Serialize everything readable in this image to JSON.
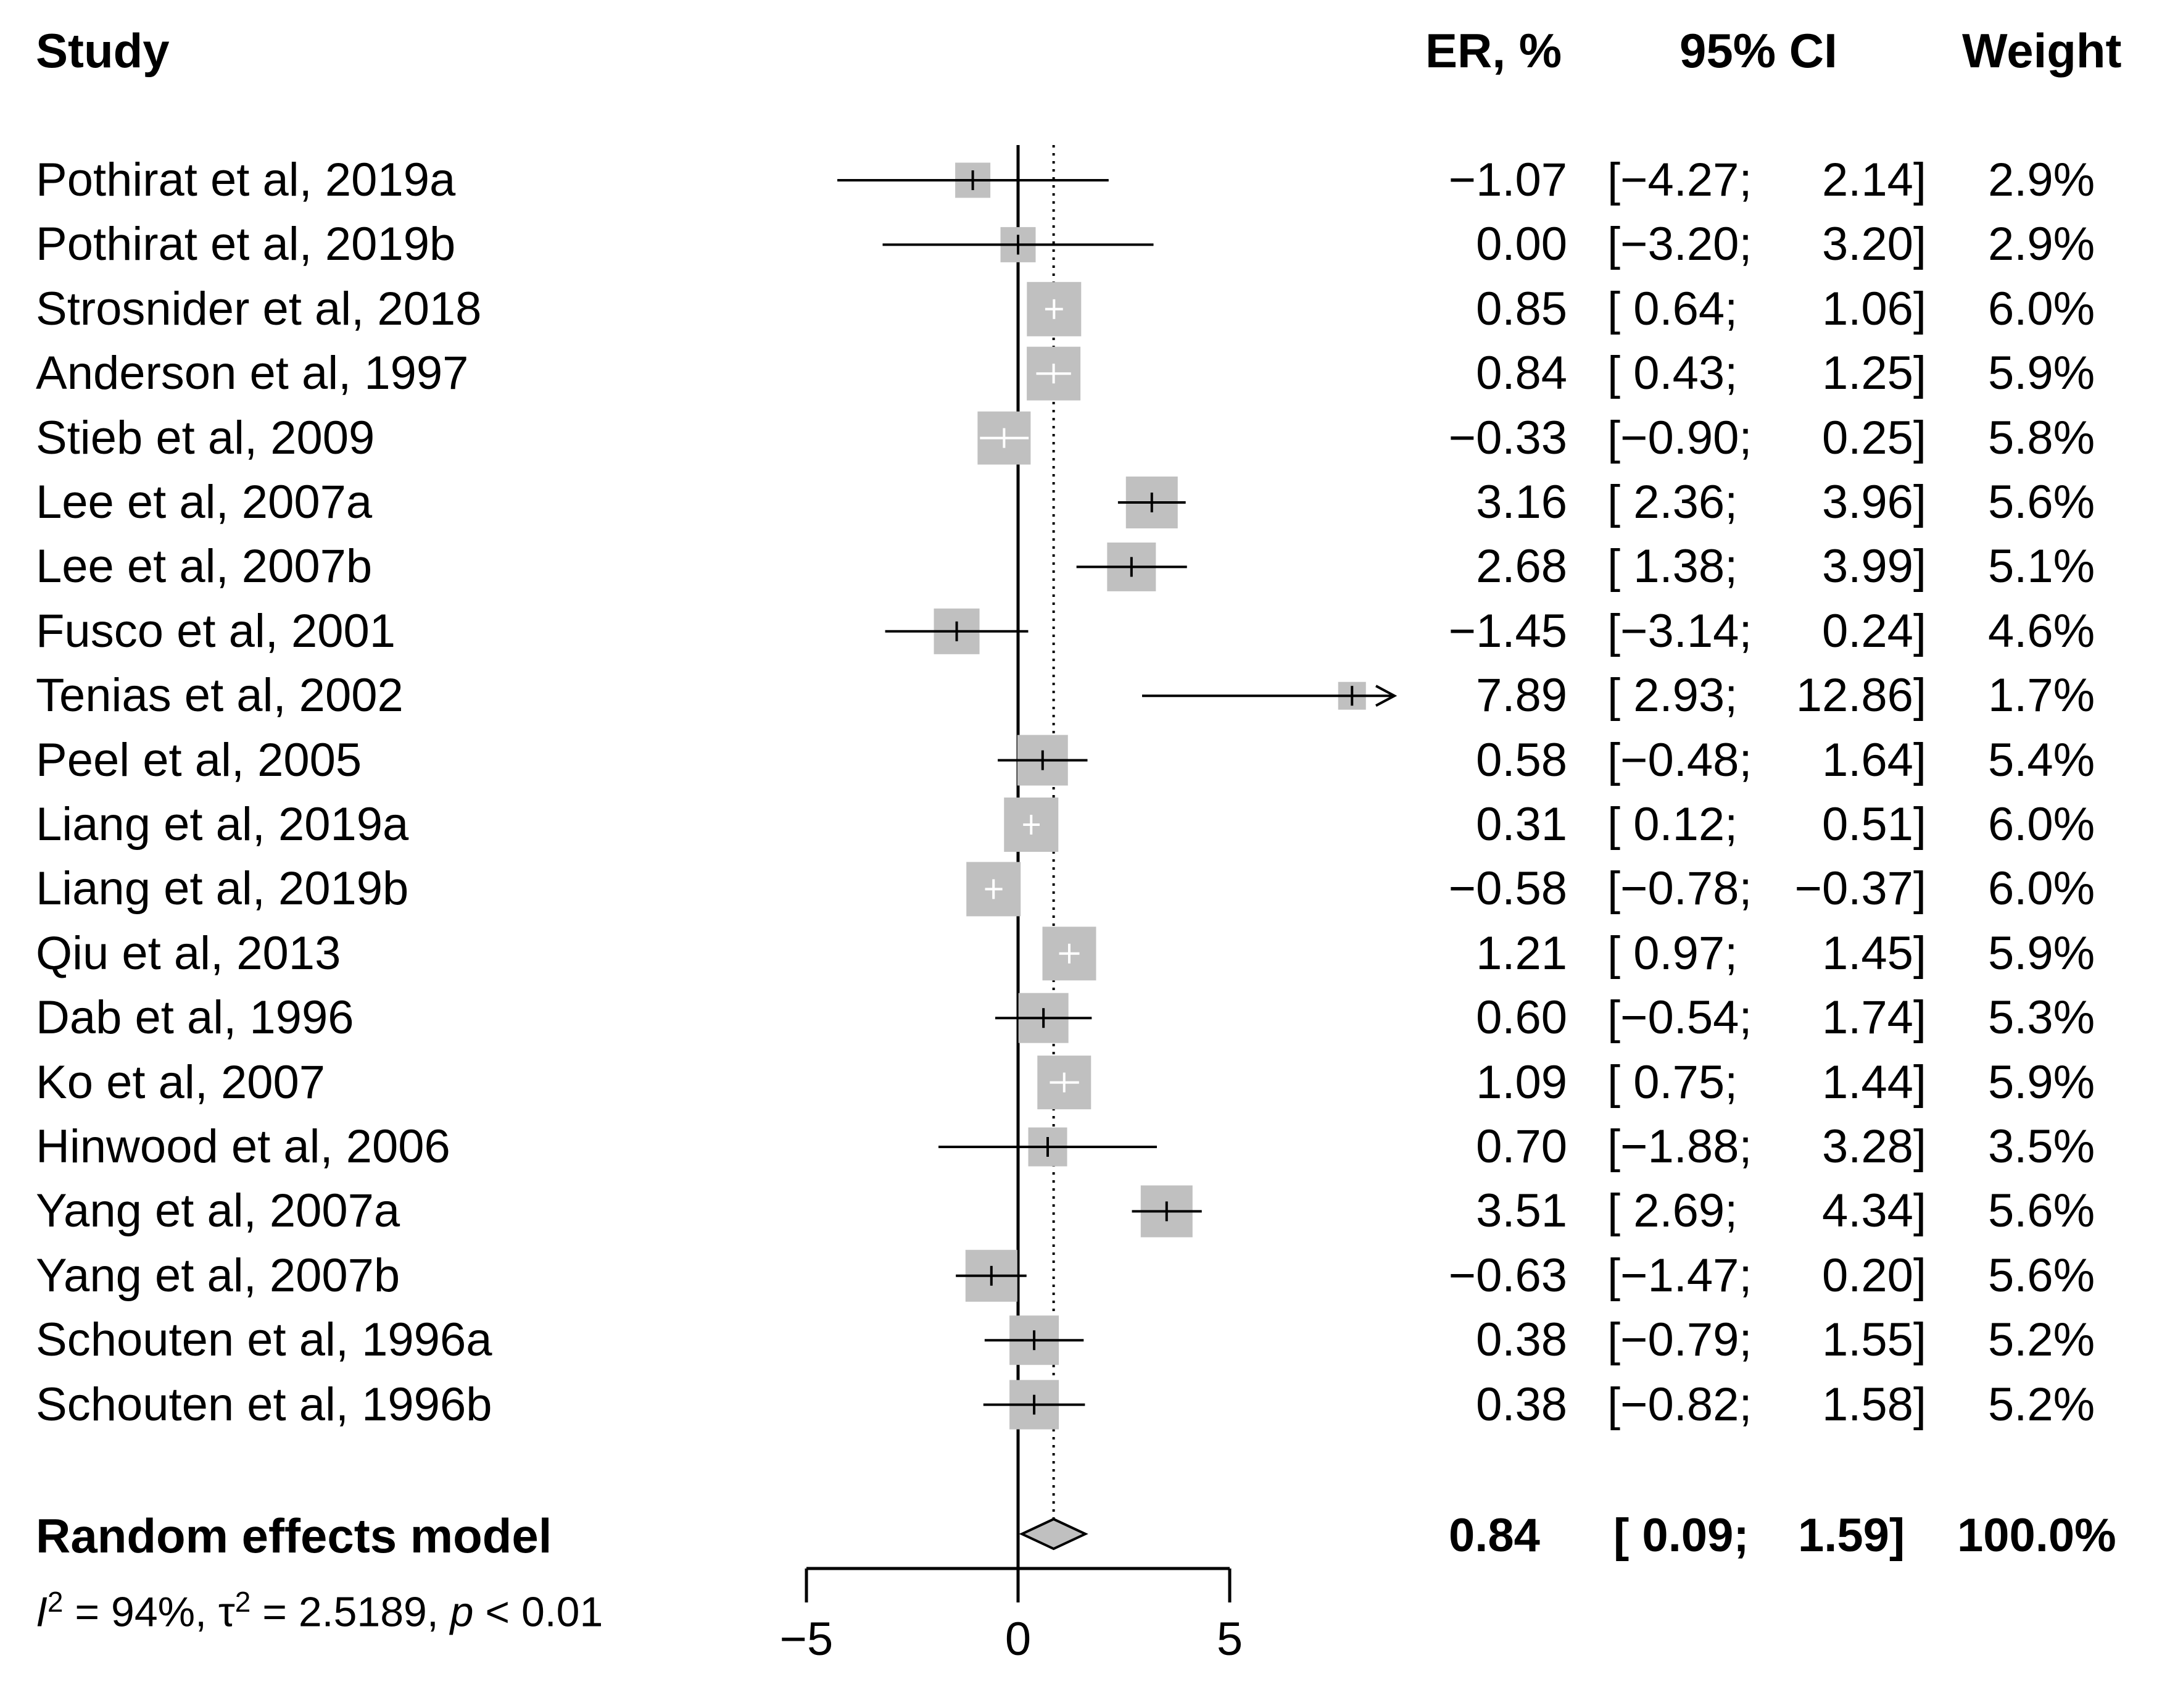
{
  "headers": {
    "study": "Study",
    "er": "ER, %",
    "ci": "95% CI",
    "weight": "Weight"
  },
  "studies": [
    {
      "name": "Pothirat et al, 2019a",
      "er": "−1.07",
      "ci_low": "[−4.27;",
      "ci_high": "2.14]",
      "weight": "2.9%"
    },
    {
      "name": "Pothirat et al, 2019b",
      "er": "0.00",
      "ci_low": "[−3.20;",
      "ci_high": "3.20]",
      "weight": "2.9%"
    },
    {
      "name": "Strosnider et al, 2018",
      "er": "0.85",
      "ci_low": "[ 0.64;",
      "ci_high": "1.06]",
      "weight": "6.0%"
    },
    {
      "name": "Anderson et al, 1997",
      "er": "0.84",
      "ci_low": "[ 0.43;",
      "ci_high": "1.25]",
      "weight": "5.9%"
    },
    {
      "name": "Stieb et al, 2009",
      "er": "−0.33",
      "ci_low": "[−0.90;",
      "ci_high": "0.25]",
      "weight": "5.8%"
    },
    {
      "name": "Lee et al, 2007a",
      "er": "3.16",
      "ci_low": "[ 2.36;",
      "ci_high": "3.96]",
      "weight": "5.6%"
    },
    {
      "name": "Lee et al, 2007b",
      "er": "2.68",
      "ci_low": "[ 1.38;",
      "ci_high": "3.99]",
      "weight": "5.1%"
    },
    {
      "name": "Fusco et al, 2001",
      "er": "−1.45",
      "ci_low": "[−3.14;",
      "ci_high": "0.24]",
      "weight": "4.6%"
    },
    {
      "name": "Tenias et al, 2002",
      "er": "7.89",
      "ci_low": "[ 2.93;",
      "ci_high": "12.86]",
      "weight": "1.7%"
    },
    {
      "name": "Peel et al, 2005",
      "er": "0.58",
      "ci_low": "[−0.48;",
      "ci_high": "1.64]",
      "weight": "5.4%"
    },
    {
      "name": "Liang et al, 2019a",
      "er": "0.31",
      "ci_low": "[ 0.12;",
      "ci_high": "0.51]",
      "weight": "6.0%"
    },
    {
      "name": "Liang et al, 2019b",
      "er": "−0.58",
      "ci_low": "[−0.78;",
      "ci_high": "−0.37]",
      "weight": "6.0%"
    },
    {
      "name": "Qiu et al, 2013",
      "er": "1.21",
      "ci_low": "[ 0.97;",
      "ci_high": "1.45]",
      "weight": "5.9%"
    },
    {
      "name": "Dab et al, 1996",
      "er": "0.60",
      "ci_low": "[−0.54;",
      "ci_high": "1.74]",
      "weight": "5.3%"
    },
    {
      "name": "Ko et al, 2007",
      "er": "1.09",
      "ci_low": "[ 0.75;",
      "ci_high": "1.44]",
      "weight": "5.9%"
    },
    {
      "name": "Hinwood et al, 2006",
      "er": "0.70",
      "ci_low": "[−1.88;",
      "ci_high": "3.28]",
      "weight": "3.5%"
    },
    {
      "name": "Yang et al, 2007a",
      "er": "3.51",
      "ci_low": "[ 2.69;",
      "ci_high": "4.34]",
      "weight": "5.6%"
    },
    {
      "name": "Yang et al, 2007b",
      "er": "−0.63",
      "ci_low": "[−1.47;",
      "ci_high": "0.20]",
      "weight": "5.6%"
    },
    {
      "name": "Schouten et al, 1996a",
      "er": "0.38",
      "ci_low": "[−0.79;",
      "ci_high": "1.55]",
      "weight": "5.2%"
    },
    {
      "name": "Schouten et al, 1996b",
      "er": "0.38",
      "ci_low": "[−0.82;",
      "ci_high": "1.58]",
      "weight": "5.2%"
    }
  ],
  "summary": {
    "name": "Random effects model",
    "er": "0.84",
    "ci_low": "[ 0.09;",
    "ci_high": "1.59]",
    "weight": "100.0%"
  },
  "heterogeneity": {
    "i2_label": "I",
    "i2_sup": "2",
    "i2_value": " = 94%, ",
    "tau_label": "τ",
    "tau_sup": "2",
    "tau_value": " = 2.5189, ",
    "p_label": "p",
    "p_value": " < 0.01"
  },
  "colors": {
    "box": "#c0c0c0",
    "line": "#000000",
    "summary_fill": "#c0c0c0"
  },
  "chart_data": {
    "type": "forest",
    "xlim": [
      -5,
      5
    ],
    "visible_xlim": [
      -5,
      8.5
    ],
    "ticks": [
      -5,
      0,
      5
    ],
    "tick_labels": [
      "−5",
      "0",
      "5"
    ],
    "reference_line": 0,
    "summary_line": 0.84,
    "series": [
      {
        "name": "Pothirat et al, 2019a",
        "est": -1.07,
        "low": -4.27,
        "high": 2.14,
        "w": 2.9
      },
      {
        "name": "Pothirat et al, 2019b",
        "est": 0.0,
        "low": -3.2,
        "high": 3.2,
        "w": 2.9
      },
      {
        "name": "Strosnider et al, 2018",
        "est": 0.85,
        "low": 0.64,
        "high": 1.06,
        "w": 6.0
      },
      {
        "name": "Anderson et al, 1997",
        "est": 0.84,
        "low": 0.43,
        "high": 1.25,
        "w": 5.9
      },
      {
        "name": "Stieb et al, 2009",
        "est": -0.33,
        "low": -0.9,
        "high": 0.25,
        "w": 5.8
      },
      {
        "name": "Lee et al, 2007a",
        "est": 3.16,
        "low": 2.36,
        "high": 3.96,
        "w": 5.6
      },
      {
        "name": "Lee et al, 2007b",
        "est": 2.68,
        "low": 1.38,
        "high": 3.99,
        "w": 5.1
      },
      {
        "name": "Fusco et al, 2001",
        "est": -1.45,
        "low": -3.14,
        "high": 0.24,
        "w": 4.6
      },
      {
        "name": "Tenias et al, 2002",
        "est": 7.89,
        "low": 2.93,
        "high": 12.86,
        "w": 1.7
      },
      {
        "name": "Peel et al, 2005",
        "est": 0.58,
        "low": -0.48,
        "high": 1.64,
        "w": 5.4
      },
      {
        "name": "Liang et al, 2019a",
        "est": 0.31,
        "low": 0.12,
        "high": 0.51,
        "w": 6.0
      },
      {
        "name": "Liang et al, 2019b",
        "est": -0.58,
        "low": -0.78,
        "high": -0.37,
        "w": 6.0
      },
      {
        "name": "Qiu et al, 2013",
        "est": 1.21,
        "low": 0.97,
        "high": 1.45,
        "w": 5.9
      },
      {
        "name": "Dab et al, 1996",
        "est": 0.6,
        "low": -0.54,
        "high": 1.74,
        "w": 5.3
      },
      {
        "name": "Ko et al, 2007",
        "est": 1.09,
        "low": 0.75,
        "high": 1.44,
        "w": 5.9
      },
      {
        "name": "Hinwood et al, 2006",
        "est": 0.7,
        "low": -1.88,
        "high": 3.28,
        "w": 3.5
      },
      {
        "name": "Yang et al, 2007a",
        "est": 3.51,
        "low": 2.69,
        "high": 4.34,
        "w": 5.6
      },
      {
        "name": "Yang et al, 2007b",
        "est": -0.63,
        "low": -1.47,
        "high": 0.2,
        "w": 5.6
      },
      {
        "name": "Schouten et al, 1996a",
        "est": 0.38,
        "low": -0.79,
        "high": 1.55,
        "w": 5.2
      },
      {
        "name": "Schouten et al, 1996b",
        "est": 0.38,
        "low": -0.82,
        "high": 1.58,
        "w": 5.2
      }
    ],
    "summary": {
      "name": "Random effects model",
      "est": 0.84,
      "low": 0.09,
      "high": 1.59
    }
  }
}
